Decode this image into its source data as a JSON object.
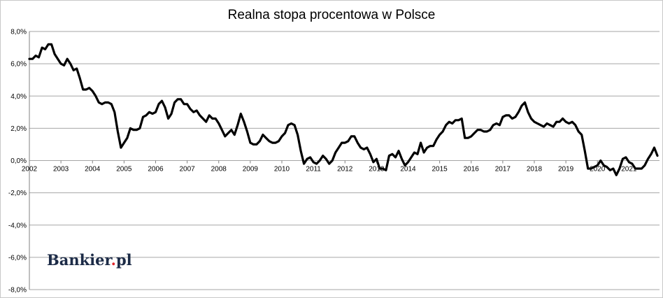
{
  "chart_data": {
    "type": "line",
    "title": "Realna stopa procentowa w Polsce",
    "xlabel": "",
    "ylabel": "",
    "ylim": [
      -8,
      8
    ],
    "xlim": [
      2002,
      2021.9
    ],
    "grid": true,
    "y_ticks": [
      8,
      6,
      4,
      2,
      0,
      -2,
      -4,
      -6,
      -8
    ],
    "y_tick_labels": [
      "8,0%",
      "6,0%",
      "4,0%",
      "2,0%",
      "0,0%",
      "-2,0%",
      "-4,0%",
      "-6,0%",
      "-8,0%"
    ],
    "x_ticks": [
      2002,
      2003,
      2004,
      2005,
      2006,
      2007,
      2008,
      2009,
      2010,
      2011,
      2012,
      2013,
      2014,
      2015,
      2016,
      2017,
      2018,
      2019,
      2020,
      2021
    ],
    "x_tick_labels": [
      "2002",
      "2003",
      "2004",
      "2005",
      "2006",
      "2007",
      "2008",
      "2009",
      "2010",
      "2011",
      "2012",
      "2013",
      "2014",
      "2015",
      "2016",
      "2017",
      "2018",
      "2019",
      "2020",
      "2021"
    ],
    "series": [
      {
        "color": "#000000",
        "points": [
          [
            2002.0,
            6.3
          ],
          [
            2002.1,
            6.3
          ],
          [
            2002.2,
            6.5
          ],
          [
            2002.3,
            6.4
          ],
          [
            2002.4,
            7.0
          ],
          [
            2002.5,
            6.9
          ],
          [
            2002.6,
            7.2
          ],
          [
            2002.7,
            7.2
          ],
          [
            2002.8,
            6.6
          ],
          [
            2002.9,
            6.3
          ],
          [
            2003.0,
            6.0
          ],
          [
            2003.1,
            5.9
          ],
          [
            2003.2,
            6.3
          ],
          [
            2003.3,
            6.0
          ],
          [
            2003.4,
            5.6
          ],
          [
            2003.5,
            5.7
          ],
          [
            2003.6,
            5.1
          ],
          [
            2003.7,
            4.4
          ],
          [
            2003.8,
            4.4
          ],
          [
            2003.9,
            4.5
          ],
          [
            2004.0,
            4.3
          ],
          [
            2004.1,
            4.0
          ],
          [
            2004.2,
            3.6
          ],
          [
            2004.3,
            3.5
          ],
          [
            2004.4,
            3.6
          ],
          [
            2004.5,
            3.6
          ],
          [
            2004.6,
            3.5
          ],
          [
            2004.7,
            3.0
          ],
          [
            2004.8,
            1.8
          ],
          [
            2004.9,
            0.8
          ],
          [
            2005.0,
            1.1
          ],
          [
            2005.1,
            1.4
          ],
          [
            2005.2,
            2.0
          ],
          [
            2005.3,
            1.9
          ],
          [
            2005.4,
            1.9
          ],
          [
            2005.5,
            2.0
          ],
          [
            2005.6,
            2.7
          ],
          [
            2005.7,
            2.8
          ],
          [
            2005.8,
            3.0
          ],
          [
            2005.9,
            2.9
          ],
          [
            2006.0,
            3.0
          ],
          [
            2006.1,
            3.5
          ],
          [
            2006.2,
            3.7
          ],
          [
            2006.3,
            3.3
          ],
          [
            2006.4,
            2.6
          ],
          [
            2006.5,
            2.9
          ],
          [
            2006.6,
            3.6
          ],
          [
            2006.7,
            3.8
          ],
          [
            2006.8,
            3.8
          ],
          [
            2006.9,
            3.5
          ],
          [
            2007.0,
            3.5
          ],
          [
            2007.1,
            3.2
          ],
          [
            2007.2,
            3.0
          ],
          [
            2007.3,
            3.1
          ],
          [
            2007.4,
            2.8
          ],
          [
            2007.5,
            2.6
          ],
          [
            2007.6,
            2.4
          ],
          [
            2007.7,
            2.8
          ],
          [
            2007.8,
            2.6
          ],
          [
            2007.9,
            2.6
          ],
          [
            2008.0,
            2.3
          ],
          [
            2008.1,
            1.9
          ],
          [
            2008.2,
            1.5
          ],
          [
            2008.3,
            1.7
          ],
          [
            2008.4,
            1.9
          ],
          [
            2008.5,
            1.6
          ],
          [
            2008.6,
            2.2
          ],
          [
            2008.7,
            2.9
          ],
          [
            2008.8,
            2.4
          ],
          [
            2008.9,
            1.8
          ],
          [
            2009.0,
            1.1
          ],
          [
            2009.1,
            1.0
          ],
          [
            2009.2,
            1.0
          ],
          [
            2009.3,
            1.2
          ],
          [
            2009.4,
            1.6
          ],
          [
            2009.5,
            1.4
          ],
          [
            2009.6,
            1.2
          ],
          [
            2009.7,
            1.1
          ],
          [
            2009.8,
            1.1
          ],
          [
            2009.9,
            1.2
          ],
          [
            2010.0,
            1.5
          ],
          [
            2010.1,
            1.7
          ],
          [
            2010.2,
            2.2
          ],
          [
            2010.3,
            2.3
          ],
          [
            2010.4,
            2.2
          ],
          [
            2010.5,
            1.6
          ],
          [
            2010.6,
            0.6
          ],
          [
            2010.7,
            -0.2
          ],
          [
            2010.8,
            0.1
          ],
          [
            2010.9,
            0.2
          ],
          [
            2011.0,
            -0.1
          ],
          [
            2011.1,
            -0.2
          ],
          [
            2011.2,
            0.0
          ],
          [
            2011.3,
            0.3
          ],
          [
            2011.4,
            0.1
          ],
          [
            2011.5,
            -0.2
          ],
          [
            2011.6,
            0.0
          ],
          [
            2011.7,
            0.5
          ],
          [
            2011.8,
            0.8
          ],
          [
            2011.9,
            1.1
          ],
          [
            2012.0,
            1.1
          ],
          [
            2012.1,
            1.2
          ],
          [
            2012.2,
            1.5
          ],
          [
            2012.3,
            1.5
          ],
          [
            2012.4,
            1.1
          ],
          [
            2012.5,
            0.8
          ],
          [
            2012.6,
            0.7
          ],
          [
            2012.7,
            0.8
          ],
          [
            2012.8,
            0.4
          ],
          [
            2012.9,
            -0.1
          ],
          [
            2013.0,
            0.1
          ],
          [
            2013.1,
            -0.5
          ],
          [
            2013.2,
            -0.5
          ],
          [
            2013.3,
            -0.6
          ],
          [
            2013.4,
            0.3
          ],
          [
            2013.5,
            0.4
          ],
          [
            2013.6,
            0.2
          ],
          [
            2013.7,
            0.6
          ],
          [
            2013.8,
            0.1
          ],
          [
            2013.9,
            -0.3
          ],
          [
            2014.0,
            -0.1
          ],
          [
            2014.1,
            0.2
          ],
          [
            2014.2,
            0.5
          ],
          [
            2014.3,
            0.4
          ],
          [
            2014.4,
            1.1
          ],
          [
            2014.5,
            0.5
          ],
          [
            2014.6,
            0.8
          ],
          [
            2014.7,
            0.9
          ],
          [
            2014.8,
            0.9
          ],
          [
            2014.9,
            1.3
          ],
          [
            2015.0,
            1.6
          ],
          [
            2015.1,
            1.8
          ],
          [
            2015.2,
            2.2
          ],
          [
            2015.3,
            2.4
          ],
          [
            2015.4,
            2.3
          ],
          [
            2015.5,
            2.5
          ],
          [
            2015.6,
            2.5
          ],
          [
            2015.7,
            2.6
          ],
          [
            2015.8,
            1.4
          ],
          [
            2015.9,
            1.4
          ],
          [
            2016.0,
            1.5
          ],
          [
            2016.1,
            1.7
          ],
          [
            2016.2,
            1.9
          ],
          [
            2016.3,
            1.9
          ],
          [
            2016.4,
            1.8
          ],
          [
            2016.5,
            1.8
          ],
          [
            2016.6,
            1.9
          ],
          [
            2016.7,
            2.2
          ],
          [
            2016.8,
            2.3
          ],
          [
            2016.9,
            2.2
          ],
          [
            2017.0,
            2.7
          ],
          [
            2017.1,
            2.8
          ],
          [
            2017.2,
            2.8
          ],
          [
            2017.3,
            2.6
          ],
          [
            2017.4,
            2.7
          ],
          [
            2017.5,
            3.0
          ],
          [
            2017.6,
            3.4
          ],
          [
            2017.7,
            3.6
          ],
          [
            2017.8,
            3.0
          ],
          [
            2017.9,
            2.6
          ],
          [
            2018.0,
            2.4
          ],
          [
            2018.1,
            2.3
          ],
          [
            2018.2,
            2.2
          ],
          [
            2018.3,
            2.1
          ],
          [
            2018.4,
            2.3
          ],
          [
            2018.5,
            2.2
          ],
          [
            2018.6,
            2.1
          ],
          [
            2018.7,
            2.4
          ],
          [
            2018.8,
            2.4
          ],
          [
            2018.9,
            2.6
          ],
          [
            2019.0,
            2.4
          ],
          [
            2019.1,
            2.3
          ],
          [
            2019.2,
            2.4
          ],
          [
            2019.3,
            2.2
          ],
          [
            2019.4,
            1.8
          ],
          [
            2019.5,
            1.6
          ],
          [
            2019.6,
            0.6
          ],
          [
            2019.7,
            -0.5
          ],
          [
            2019.8,
            -0.5
          ],
          [
            2019.9,
            -0.4
          ],
          [
            2020.0,
            -0.3
          ],
          [
            2020.1,
            0.0
          ],
          [
            2020.2,
            -0.3
          ],
          [
            2020.3,
            -0.4
          ],
          [
            2020.4,
            -0.6
          ],
          [
            2020.5,
            -0.5
          ],
          [
            2020.6,
            -0.9
          ],
          [
            2020.7,
            -0.5
          ],
          [
            2020.8,
            0.1
          ],
          [
            2020.9,
            0.2
          ],
          [
            2021.0,
            -0.1
          ],
          [
            2021.1,
            -0.2
          ],
          [
            2021.2,
            -0.5
          ],
          [
            2021.3,
            -0.5
          ],
          [
            2021.4,
            -0.5
          ],
          [
            2021.5,
            -0.3
          ],
          [
            2021.6,
            0.1
          ],
          [
            2021.7,
            0.4
          ],
          [
            2021.8,
            0.8
          ],
          [
            2021.9,
            0.3
          ]
        ]
      }
    ]
  },
  "logo": {
    "part1": "Bankier",
    "dot": ".",
    "part2": "pl"
  }
}
